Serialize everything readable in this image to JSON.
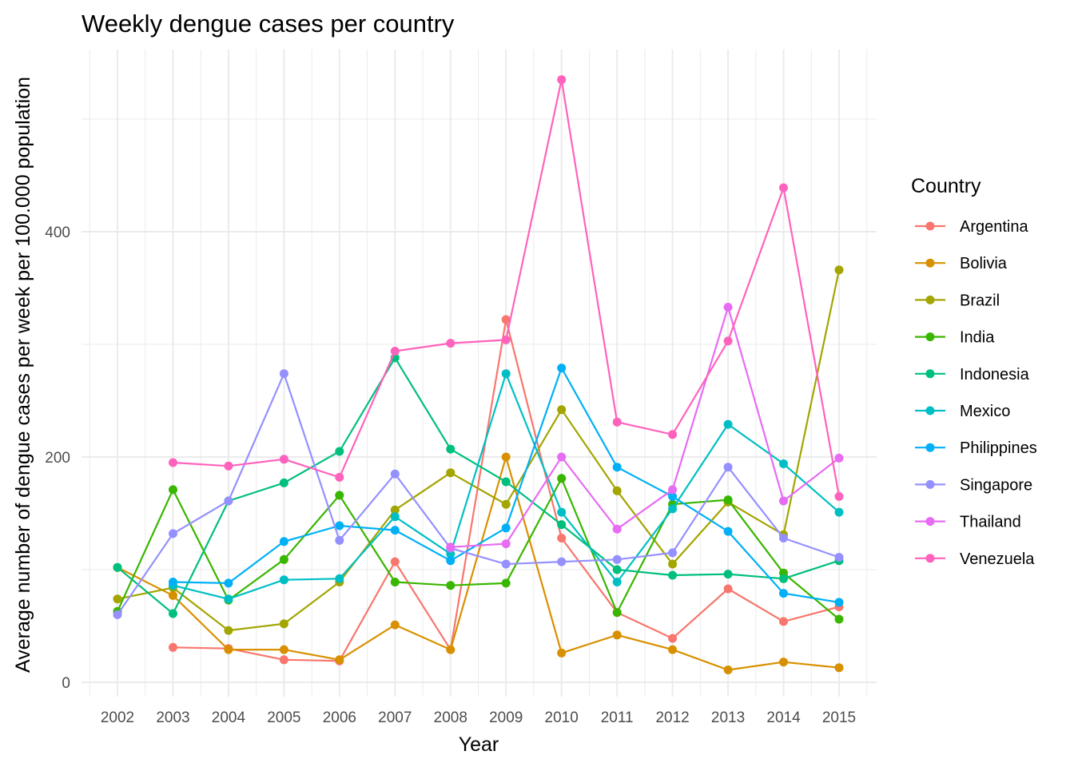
{
  "chart_data": {
    "type": "line",
    "title": "Weekly dengue cases per country",
    "xlabel": "Year",
    "ylabel": "Average number of dengue cases per week per 100.000 population",
    "x": [
      2002,
      2003,
      2004,
      2005,
      2006,
      2007,
      2008,
      2009,
      2010,
      2011,
      2012,
      2013,
      2014,
      2015
    ],
    "x_tick_labels": [
      "2002",
      "2003",
      "2004",
      "2005",
      "2006",
      "2007",
      "2008",
      "2009",
      "2010",
      "2011",
      "2012",
      "2013",
      "2014",
      "2015"
    ],
    "y_ticks": [
      0,
      200,
      400
    ],
    "y_tick_labels": [
      "0",
      "200",
      "400"
    ],
    "ylim": [
      -10,
      560
    ],
    "grid": true,
    "legend_title": "Country",
    "legend_position": "right",
    "series": [
      {
        "name": "Argentina",
        "color": "#F8766D",
        "values": [
          null,
          31,
          30,
          20,
          19,
          107,
          29,
          322,
          128,
          62,
          39,
          83,
          54,
          67
        ]
      },
      {
        "name": "Bolivia",
        "color": "#D89000",
        "values": [
          102,
          77,
          29,
          29,
          20,
          51,
          29,
          200,
          26,
          42,
          29,
          11,
          18,
          13
        ]
      },
      {
        "name": "Brazil",
        "color": "#A3A500",
        "values": [
          74,
          84,
          46,
          52,
          89,
          153,
          186,
          158,
          242,
          170,
          105,
          160,
          131,
          366
        ]
      },
      {
        "name": "India",
        "color": "#39B600",
        "values": [
          63,
          171,
          73,
          109,
          166,
          89,
          86,
          88,
          181,
          62,
          158,
          162,
          97,
          56
        ]
      },
      {
        "name": "Indonesia",
        "color": "#00BF7D",
        "values": [
          102,
          61,
          161,
          177,
          205,
          288,
          207,
          178,
          140,
          100,
          95,
          96,
          92,
          108
        ]
      },
      {
        "name": "Mexico",
        "color": "#00BFC4",
        "values": [
          null,
          86,
          74,
          91,
          92,
          147,
          114,
          274,
          151,
          89,
          154,
          229,
          194,
          151
        ]
      },
      {
        "name": "Philippines",
        "color": "#00B0F6",
        "values": [
          null,
          89,
          88,
          125,
          139,
          135,
          108,
          137,
          279,
          191,
          165,
          134,
          79,
          71
        ]
      },
      {
        "name": "Singapore",
        "color": "#9590FF",
        "values": [
          60,
          132,
          161,
          274,
          126,
          185,
          119,
          105,
          107,
          109,
          115,
          191,
          128,
          111
        ]
      },
      {
        "name": "Thailand",
        "color": "#E76BF3",
        "values": [
          null,
          null,
          null,
          null,
          null,
          null,
          120,
          123,
          200,
          136,
          171,
          333,
          161,
          199
        ]
      },
      {
        "name": "Venezuela",
        "color": "#FF62BC",
        "values": [
          null,
          195,
          192,
          198,
          182,
          294,
          301,
          304,
          535,
          231,
          220,
          303,
          439,
          165
        ]
      }
    ]
  }
}
